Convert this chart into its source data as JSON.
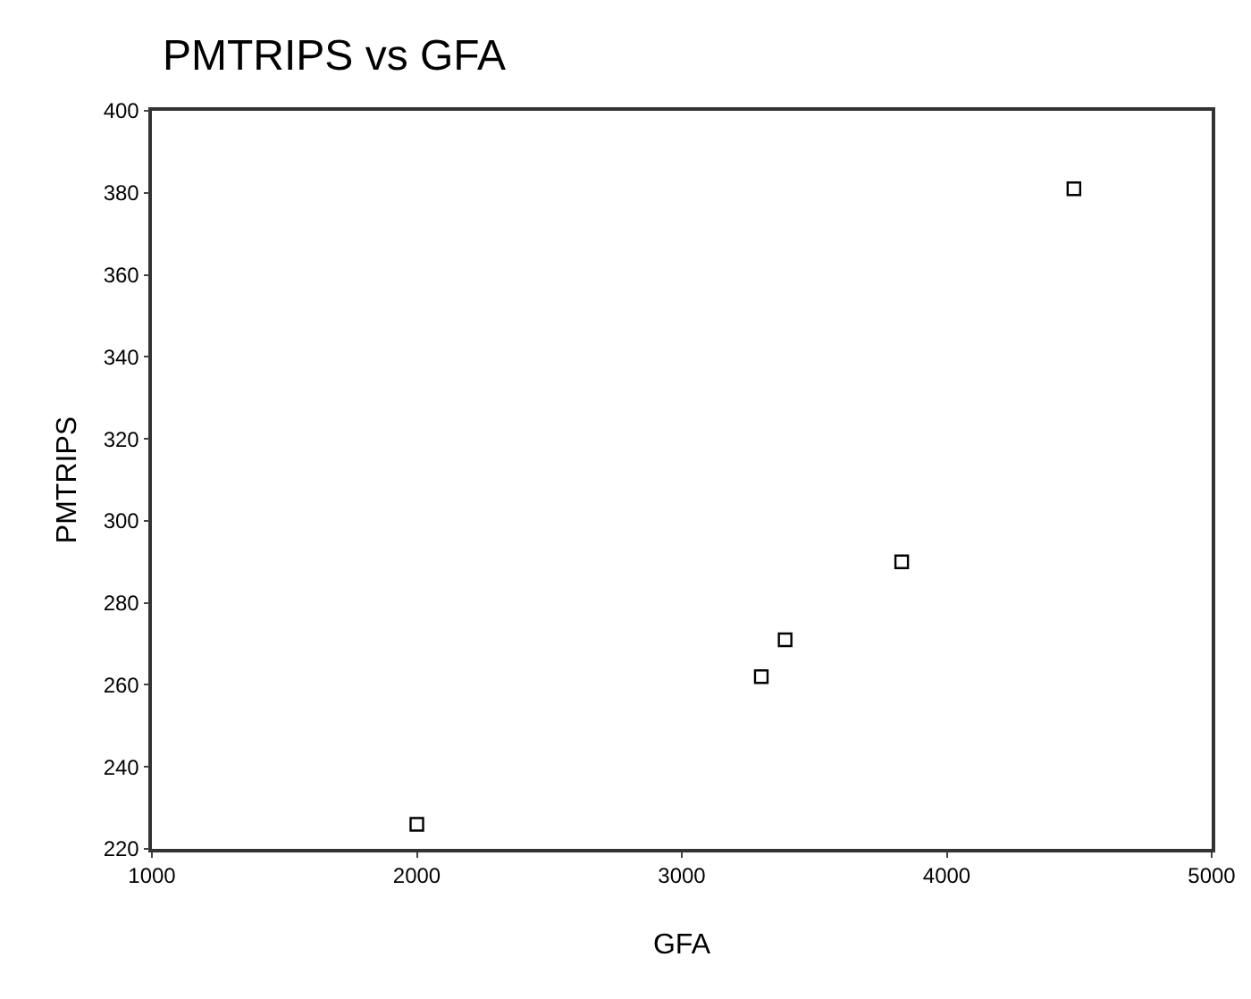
{
  "chart_data": {
    "type": "scatter",
    "title": "PMTRIPS vs GFA",
    "xlabel": "GFA",
    "ylabel": "PMTRIPS",
    "x": [
      2000,
      3300,
      3390,
      3830,
      4480
    ],
    "values": [
      226,
      262,
      271,
      290,
      381
    ],
    "color": "#000000",
    "marker": "square",
    "xlim": [
      1000,
      5000
    ],
    "xticks": [
      1000,
      2000,
      3000,
      4000,
      5000
    ],
    "ylim": [
      220,
      400
    ],
    "yticks": [
      220,
      240,
      260,
      280,
      300,
      320,
      340,
      360,
      380,
      400
    ],
    "grid": false
  }
}
